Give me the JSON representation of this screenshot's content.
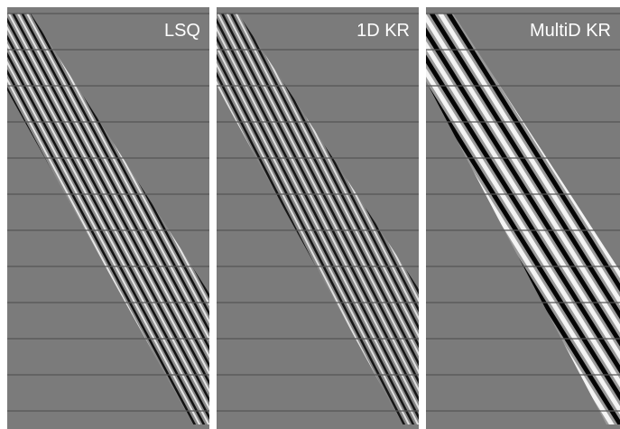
{
  "panels": [
    {
      "label": "LSQ"
    },
    {
      "label": "1D KR"
    },
    {
      "label": "MultiD KR"
    }
  ]
}
